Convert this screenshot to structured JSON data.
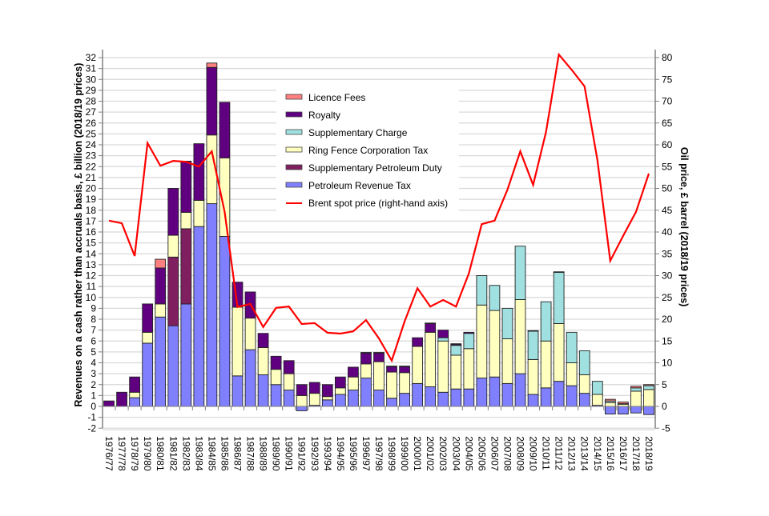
{
  "chart_data": {
    "type": "bar",
    "stacked": true,
    "title": "",
    "xlabel": "",
    "ylabel": "Revenues on a cash rather than accruals basis, £ billion (2018/19 prices)",
    "y2label": "Oil price, £ barrel (2018/19 prices)",
    "ylim": [
      -2,
      32
    ],
    "y2lim": [
      -5,
      80
    ],
    "yticks": [
      -2,
      -1,
      0,
      1,
      2,
      3,
      4,
      5,
      6,
      7,
      8,
      9,
      10,
      11,
      12,
      13,
      14,
      15,
      16,
      17,
      18,
      19,
      20,
      21,
      22,
      23,
      24,
      25,
      26,
      27,
      28,
      29,
      30,
      31,
      32
    ],
    "y2ticks": [
      -5,
      0,
      5,
      10,
      15,
      20,
      25,
      30,
      35,
      40,
      45,
      50,
      55,
      60,
      65,
      70,
      75,
      80
    ],
    "grid": true,
    "legend_position": "top-center",
    "categories": [
      "1976/77",
      "1977/78",
      "1978/79",
      "1979/80",
      "1980/81",
      "1981/82",
      "1982/83",
      "1983/84",
      "1984/85",
      "1985/86",
      "1986/87",
      "1987/88",
      "1988/89",
      "1989/90",
      "1990/91",
      "1991/92",
      "1992/93",
      "1993/94",
      "1994/95",
      "1995/96",
      "1996/97",
      "1997/98",
      "1998/99",
      "1999/00",
      "2000/01",
      "2001/02",
      "2002/03",
      "2003/04",
      "2004/05",
      "2005/06",
      "2006/07",
      "2007/08",
      "2008/09",
      "2009/10",
      "2010/11",
      "2011/12",
      "2012/13",
      "2013/14",
      "2014/15",
      "2015/16",
      "2016/17",
      "2017/18",
      "2018/19"
    ],
    "series": [
      {
        "name": "Petroleum Revenue Tax",
        "color": "#8080ff",
        "axis": "left",
        "values": [
          0,
          0,
          0.8,
          5.8,
          8.2,
          7.4,
          9.4,
          16.5,
          18.6,
          15.6,
          2.8,
          5.2,
          2.9,
          2.0,
          1.5,
          -0.4,
          0.1,
          0.6,
          1.1,
          1.5,
          2.6,
          1.5,
          0.75,
          1.2,
          2.1,
          1.8,
          1.3,
          1.6,
          1.6,
          2.6,
          2.7,
          2.1,
          3.0,
          1.1,
          1.7,
          2.3,
          1.9,
          1.2,
          0.1,
          -0.7,
          -0.7,
          -0.6,
          -0.75
        ]
      },
      {
        "name": "Supplementary Petroleum Duty",
        "color": "#7f1f5f",
        "axis": "left",
        "values": [
          0,
          0,
          0,
          0,
          0,
          6.3,
          6.9,
          0,
          0,
          0,
          0,
          0,
          0,
          0,
          0,
          0,
          0,
          0,
          0,
          0,
          0,
          0,
          0,
          0,
          0,
          0,
          0,
          0,
          0,
          0,
          0,
          0,
          0,
          0,
          0,
          0,
          0,
          0,
          0,
          0,
          0,
          0,
          0
        ]
      },
      {
        "name": "Ring Fence Corporation Tax",
        "color": "#ffffc0",
        "axis": "left",
        "values": [
          0,
          0,
          0.5,
          1.0,
          1.2,
          2.0,
          1.5,
          2.4,
          6.3,
          7.2,
          6.3,
          2.9,
          2.5,
          1.4,
          1.5,
          1.0,
          1.1,
          0.3,
          0.6,
          1.2,
          1.3,
          2.6,
          2.4,
          1.9,
          3.4,
          5.0,
          4.7,
          3.1,
          3.7,
          6.7,
          6.1,
          4.1,
          6.8,
          3.2,
          4.3,
          5.3,
          2.1,
          1.7,
          1.0,
          0.35,
          0.2,
          1.4,
          1.55
        ]
      },
      {
        "name": "Supplementary Charge",
        "color": "#a0e0e0",
        "axis": "left",
        "values": [
          0,
          0,
          0,
          0,
          0,
          0,
          0,
          0,
          0,
          0,
          0,
          0,
          0,
          0,
          0,
          0,
          0,
          0,
          0,
          0,
          0,
          0,
          0,
          0,
          0,
          0,
          0.3,
          0.9,
          1.4,
          2.7,
          2.3,
          2.8,
          4.9,
          2.6,
          3.6,
          4.7,
          2.8,
          2.2,
          1.2,
          0.15,
          0.05,
          0.3,
          0.35
        ]
      },
      {
        "name": "Royalty",
        "color": "#600080",
        "axis": "left",
        "values": [
          0.5,
          1.3,
          1.4,
          2.6,
          3.3,
          4.3,
          4.7,
          5.2,
          6.2,
          5.1,
          2.3,
          2.4,
          1.3,
          1.2,
          1.2,
          1.0,
          1.0,
          1.1,
          1.0,
          0.9,
          1.0,
          0.8,
          0.5,
          0.55,
          0.8,
          0.8,
          0.7,
          0.1,
          0.1,
          0,
          0,
          0,
          0,
          0,
          0,
          0,
          0,
          0,
          0,
          0,
          0,
          0,
          0
        ]
      },
      {
        "name": "Licence Fees",
        "color": "#ff8080",
        "axis": "left",
        "values": [
          0,
          0,
          0,
          0,
          0.8,
          0,
          0,
          0,
          0.4,
          0,
          0,
          0,
          0,
          0,
          0,
          0,
          0,
          0,
          0,
          0,
          0.05,
          0.05,
          0.05,
          0.05,
          0,
          0.05,
          0,
          0.05,
          0,
          0,
          0,
          0,
          0,
          0.05,
          0,
          0.05,
          0,
          0,
          0,
          0.15,
          0.15,
          0.15,
          0.1
        ]
      },
      {
        "name": "Brent spot price (right-hand axis)",
        "color": "#ff0000",
        "axis": "right",
        "type": "line",
        "values": [
          42.6,
          42.0,
          34.5,
          60.4,
          55.2,
          56.3,
          56.1,
          55.0,
          58.5,
          44.6,
          22.8,
          23.5,
          18.2,
          22.6,
          22.9,
          18.9,
          19.1,
          16.9,
          16.7,
          17.2,
          19.8,
          15.6,
          10.5,
          19.5,
          27.1,
          22.9,
          24.4,
          22.9,
          30.5,
          41.8,
          42.6,
          49.7,
          58.5,
          50.8,
          62.9,
          80.7,
          77.2,
          73.4,
          56.5,
          33.4,
          39.1,
          44.6,
          53.4
        ]
      }
    ],
    "legend_order": [
      "Licence Fees",
      "Royalty",
      "Supplementary Charge",
      "Ring Fence Corporation Tax",
      "Supplementary Petroleum Duty",
      "Petroleum Revenue Tax",
      "Brent spot price (right-hand axis)"
    ]
  }
}
